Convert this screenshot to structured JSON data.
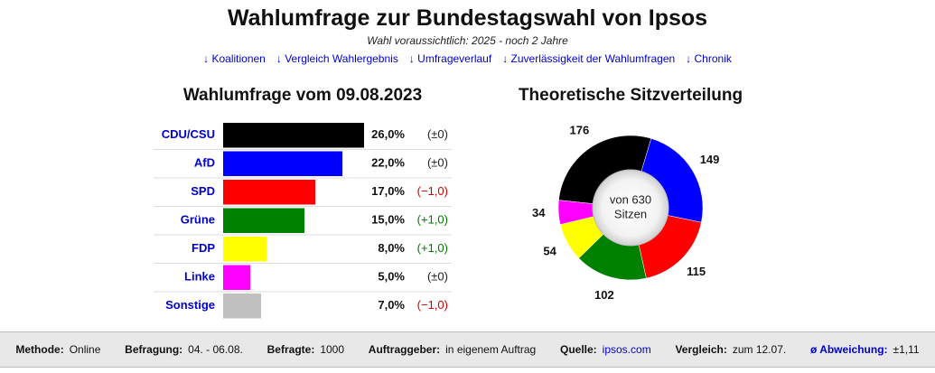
{
  "header": {
    "title": "Wahlumfrage zur Bundestagswahl von Ipsos",
    "subtitle": "Wahl voraussichtlich: 2025 - noch 2 Jahre",
    "links": [
      "↓ Koalitionen",
      "↓ Vergleich Wahlergebnis",
      "↓ Umfrageverlauf",
      "↓ Zuverlässigkeit der Wahlumfragen",
      "↓ Chronik"
    ]
  },
  "chart_data": [
    {
      "type": "bar",
      "title": "Wahlumfrage vom 09.08.2023",
      "categories": [
        "CDU/CSU",
        "AfD",
        "SPD",
        "Grüne",
        "FDP",
        "Linke",
        "Sonstige"
      ],
      "values": [
        26,
        22,
        17,
        15,
        8,
        5,
        7
      ],
      "value_labels": [
        "26,0%",
        "22,0%",
        "17,0%",
        "15,0%",
        "8,0%",
        "5,0%",
        "7,0%"
      ],
      "colors": [
        "#000000",
        "#0000ff",
        "#ff0000",
        "#008000",
        "#ffff00",
        "#ff00ff",
        "#c0c0c0"
      ],
      "changes": [
        {
          "value": 0,
          "label": "(±0)"
        },
        {
          "value": 0,
          "label": "(±0)"
        },
        {
          "value": -1,
          "label": "(−1,0)"
        },
        {
          "value": 1,
          "label": "(+1,0)"
        },
        {
          "value": 1,
          "label": "(+1,0)"
        },
        {
          "value": 0,
          "label": "(±0)"
        },
        {
          "value": -1,
          "label": "(−1,0)"
        }
      ]
    },
    {
      "type": "pie",
      "title": "Theoretische Sitzverteilung",
      "values": [
        176,
        149,
        115,
        102,
        54,
        34
      ],
      "colors": [
        "#000000",
        "#0000ff",
        "#ff0000",
        "#008000",
        "#ffff00",
        "#ff00ff"
      ],
      "center_label": [
        "von 630",
        "Sitzen"
      ]
    }
  ],
  "footer": [
    {
      "label": "Methode:",
      "value": "Online"
    },
    {
      "label": "Befragung:",
      "value": "04. - 06.08."
    },
    {
      "label": "Befragte:",
      "value": "1000"
    },
    {
      "label": "Auftraggeber:",
      "value": "in eigenem Auftrag"
    },
    {
      "label": "Quelle:",
      "value": "ipsos.com"
    },
    {
      "label": "Vergleich:",
      "value": "zum 12.07."
    },
    {
      "label": "ø Abweichung:",
      "value": "±1,11"
    }
  ]
}
